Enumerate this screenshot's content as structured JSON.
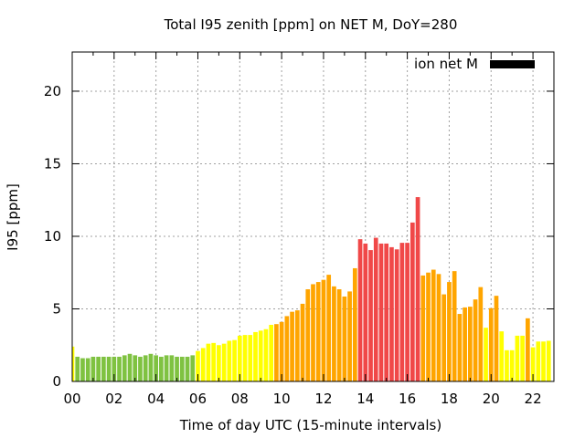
{
  "chart_data": {
    "type": "bar",
    "title": "Total I95 zenith [ppm] on NET M, DoY=280",
    "xlabel": "Time of day UTC (15-minute intervals)",
    "ylabel": "I95 [ppm]",
    "xlim": [
      0,
      23
    ],
    "ylim": [
      0,
      22.7
    ],
    "xticks": [
      "00",
      "02",
      "04",
      "06",
      "08",
      "10",
      "12",
      "14",
      "16",
      "18",
      "20",
      "22"
    ],
    "xtick_values": [
      0,
      2,
      4,
      6,
      8,
      10,
      12,
      14,
      16,
      18,
      20,
      22
    ],
    "yticks": [
      0,
      5,
      10,
      15,
      20
    ],
    "grid": true,
    "legend": {
      "label": "ion net M",
      "color": "#000000",
      "placement": "top-right"
    },
    "interval_hours": 0.25,
    "category_colors": {
      "green": "#7fc241",
      "yellow": "#ffff00",
      "orange": "#ffa500",
      "red": "#f04848"
    },
    "values": [
      2.4,
      1.7,
      1.6,
      1.6,
      1.7,
      1.7,
      1.7,
      1.7,
      1.7,
      1.7,
      1.8,
      1.9,
      1.8,
      1.7,
      1.8,
      1.9,
      1.8,
      1.7,
      1.8,
      1.8,
      1.7,
      1.7,
      1.7,
      1.8,
      2.1,
      2.3,
      2.6,
      2.65,
      2.5,
      2.6,
      2.8,
      2.85,
      3.15,
      3.2,
      3.2,
      3.4,
      3.5,
      3.6,
      3.9,
      3.95,
      4.1,
      4.5,
      4.8,
      4.9,
      5.35,
      6.35,
      6.7,
      6.85,
      7.0,
      7.35,
      6.55,
      6.35,
      5.85,
      6.2,
      7.8,
      9.8,
      9.5,
      9.05,
      9.9,
      9.5,
      9.5,
      9.25,
      9.1,
      9.55,
      9.55,
      10.95,
      12.7,
      7.3,
      7.5,
      7.7,
      7.4,
      6.0,
      6.85,
      7.6,
      4.65,
      5.1,
      5.15,
      5.65,
      6.5,
      3.7,
      5.05,
      5.9,
      3.45,
      2.15,
      2.15,
      3.15,
      3.15,
      4.35,
      2.35,
      2.75,
      2.75,
      2.8
    ],
    "colors": [
      "yellow",
      "green",
      "green",
      "green",
      "green",
      "green",
      "green",
      "green",
      "green",
      "green",
      "green",
      "green",
      "green",
      "green",
      "green",
      "green",
      "green",
      "green",
      "green",
      "green",
      "green",
      "green",
      "green",
      "green",
      "yellow",
      "yellow",
      "yellow",
      "yellow",
      "yellow",
      "yellow",
      "yellow",
      "yellow",
      "yellow",
      "yellow",
      "yellow",
      "yellow",
      "yellow",
      "yellow",
      "yellow",
      "orange",
      "orange",
      "orange",
      "orange",
      "orange",
      "orange",
      "orange",
      "orange",
      "orange",
      "orange",
      "orange",
      "orange",
      "orange",
      "orange",
      "orange",
      "orange",
      "red",
      "red",
      "red",
      "red",
      "red",
      "red",
      "red",
      "red",
      "red",
      "red",
      "red",
      "red",
      "orange",
      "orange",
      "orange",
      "orange",
      "orange",
      "orange",
      "orange",
      "orange",
      "orange",
      "orange",
      "orange",
      "orange",
      "yellow",
      "orange",
      "orange",
      "yellow",
      "yellow",
      "yellow",
      "yellow",
      "yellow",
      "orange",
      "yellow",
      "yellow",
      "yellow",
      "yellow"
    ]
  }
}
